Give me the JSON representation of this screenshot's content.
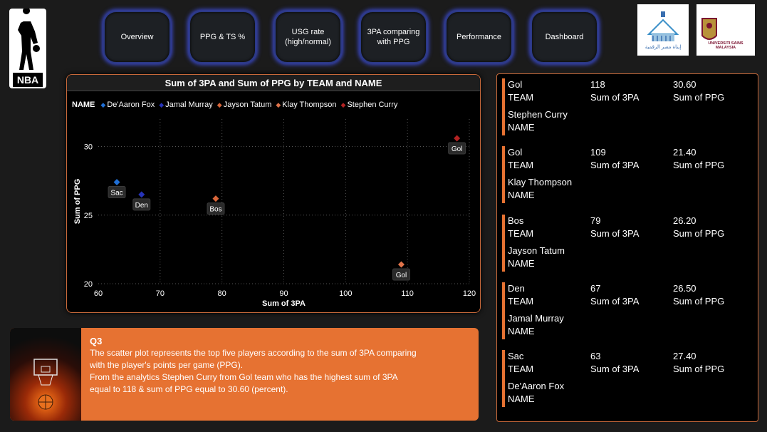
{
  "nav": [
    {
      "label": "Overview"
    },
    {
      "label": "PPG & TS %"
    },
    {
      "label": "USG rate\n(high/normal)"
    },
    {
      "label": "3PA comparing\nwith PPG"
    },
    {
      "label": "Performance"
    },
    {
      "label": "Dashboard"
    }
  ],
  "logos": {
    "nba": "NBA",
    "left_logo_text": "إيناة مصر الرقمية",
    "right_logo_text": "USM",
    "right_logo_sub": "UNIVERSITI SAINS MALAYSIA"
  },
  "chart_data": {
    "type": "scatter",
    "title": "Sum of 3PA and Sum of PPG by TEAM and NAME",
    "xlabel": "Sum of 3PA",
    "ylabel": "Sum of PPG",
    "xlim": [
      60,
      120
    ],
    "ylim": [
      20,
      32
    ],
    "xticks": [
      60,
      70,
      80,
      90,
      100,
      110,
      120
    ],
    "yticks": [
      20,
      25,
      30
    ],
    "grid": true,
    "legend_title": "NAME",
    "legend_position": "top-left",
    "series": [
      {
        "name": "De'Aaron Fox",
        "color": "#1f6fd6",
        "team": "Sac",
        "x": 63,
        "y": 27.4
      },
      {
        "name": "Jamal Murray",
        "color": "#2633b8",
        "team": "Den",
        "x": 67,
        "y": 26.5
      },
      {
        "name": "Jayson Tatum",
        "color": "#d9663a",
        "team": "Bos",
        "x": 79,
        "y": 26.2
      },
      {
        "name": "Klay Thompson",
        "color": "#e0734a",
        "team": "Gol",
        "x": 109,
        "y": 21.4
      },
      {
        "name": "Stephen Curry",
        "color": "#b22222",
        "team": "Gol",
        "x": 118,
        "y": 30.6
      }
    ]
  },
  "question": {
    "title": "Q3",
    "lines": [
      "The scatter plot represents the top five players according to the sum of 3PA comparing",
      "with the player's points per game (PPG).",
      "From the analytics Stephen Curry from Gol team who has the highest sum of 3PA",
      "equal to 118 & sum of PPG equal to 30.60 (percent)."
    ]
  },
  "cards": [
    {
      "team": "Gol",
      "team_label": "TEAM",
      "name": "Stephen Curry",
      "name_label": "NAME",
      "threepa": "118",
      "threepa_label": "Sum of 3PA",
      "ppg": "30.60",
      "ppg_label": "Sum of PPG"
    },
    {
      "team": "Gol",
      "team_label": "TEAM",
      "name": "Klay Thompson",
      "name_label": "NAME",
      "threepa": "109",
      "threepa_label": "Sum of 3PA",
      "ppg": "21.40",
      "ppg_label": "Sum of PPG"
    },
    {
      "team": "Bos",
      "team_label": "TEAM",
      "name": "Jayson Tatum",
      "name_label": "NAME",
      "threepa": "79",
      "threepa_label": "Sum of 3PA",
      "ppg": "26.20",
      "ppg_label": "Sum of PPG"
    },
    {
      "team": "Den",
      "team_label": "TEAM",
      "name": "Jamal Murray",
      "name_label": "NAME",
      "threepa": "67",
      "threepa_label": "Sum of 3PA",
      "ppg": "26.50",
      "ppg_label": "Sum of PPG"
    },
    {
      "team": "Sac",
      "team_label": "TEAM",
      "name": "De'Aaron Fox",
      "name_label": "NAME",
      "threepa": "63",
      "threepa_label": "Sum of 3PA",
      "ppg": "27.40",
      "ppg_label": "Sum of PPG"
    }
  ],
  "colors": {
    "accent": "#e67232",
    "nav_glow": "#3a48c8",
    "background": "#1b1b1b"
  }
}
